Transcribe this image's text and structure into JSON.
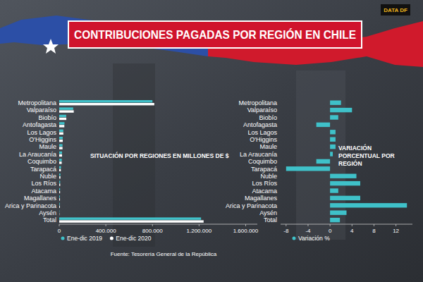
{
  "header": {
    "title": "CONTRIBUCIONES PAGADAS POR REGIÓN EN CHILE",
    "logo": "DATA DF"
  },
  "chart_data": [
    {
      "type": "bar",
      "orientation": "horizontal",
      "annotation": "SITUACIÓN POR REGIONES EN MILLONES DE $",
      "categories": [
        "Metropolitana",
        "Valparaíso",
        "Biobío",
        "Antofagasta",
        "Los Lagos",
        "O'Higgins",
        "Maule",
        "La Araucanía",
        "Coquimbo",
        "Tarapacá",
        "Ñuble",
        "Los Ríos",
        "Atacama",
        "Magallanes",
        "Arica y Parinacota",
        "Aysén",
        "Total"
      ],
      "series": [
        {
          "name": "Ene-dic 2019",
          "color": "#3fc1c9",
          "values": [
            800000,
            120000,
            60000,
            45000,
            35000,
            30000,
            28000,
            24000,
            22000,
            15000,
            10000,
            8000,
            7000,
            6000,
            5000,
            2000,
            1217000
          ]
        },
        {
          "name": "Ene-dic 2020",
          "color": "#ffffff",
          "values": [
            816000,
            124800,
            60900,
            43875,
            35350,
            30300,
            28280,
            24120,
            21450,
            13800,
            10480,
            8440,
            7105,
            6330,
            5700,
            2060,
            1238990
          ]
        }
      ],
      "xlim": [
        0,
        1700000
      ],
      "xticks": [
        0,
        {
          "value": 400000,
          "label": "400.000"
        },
        {
          "value": 800000,
          "label": "800.000"
        },
        {
          "value": 1200000,
          "label": "1.200.000"
        },
        {
          "value": 1600000,
          "label": "1.600.000"
        }
      ],
      "legend": "bottom"
    },
    {
      "type": "bar",
      "orientation": "horizontal",
      "annotation": "VARIACIÓN PORCENTUAL POR REGIÓN",
      "categories": [
        "Metropolitana",
        "Valparaíso",
        "Biobío",
        "Antofagasta",
        "Los Lagos",
        "O'Higgins",
        "Maule",
        "La Araucanía",
        "Coquimbo",
        "Tarapacá",
        "Ñuble",
        "Los Ríos",
        "Atacama",
        "Magallanes",
        "Arica y Parinacota",
        "Aysén",
        "Total"
      ],
      "series": [
        {
          "name": "Variación %",
          "color": "#3fc1c9",
          "values": [
            2,
            4,
            1.5,
            -2.5,
            1,
            1,
            1,
            0.5,
            -2.5,
            -8,
            4.8,
            5.5,
            1.5,
            5.5,
            14,
            3,
            1.8
          ]
        }
      ],
      "xlim": [
        -9,
        15
      ],
      "xticks": [
        -8,
        -4,
        0,
        4,
        8,
        12
      ],
      "legend": "bottom"
    }
  ],
  "footer": {
    "source": "Fuente: Tesorería General de la República"
  }
}
